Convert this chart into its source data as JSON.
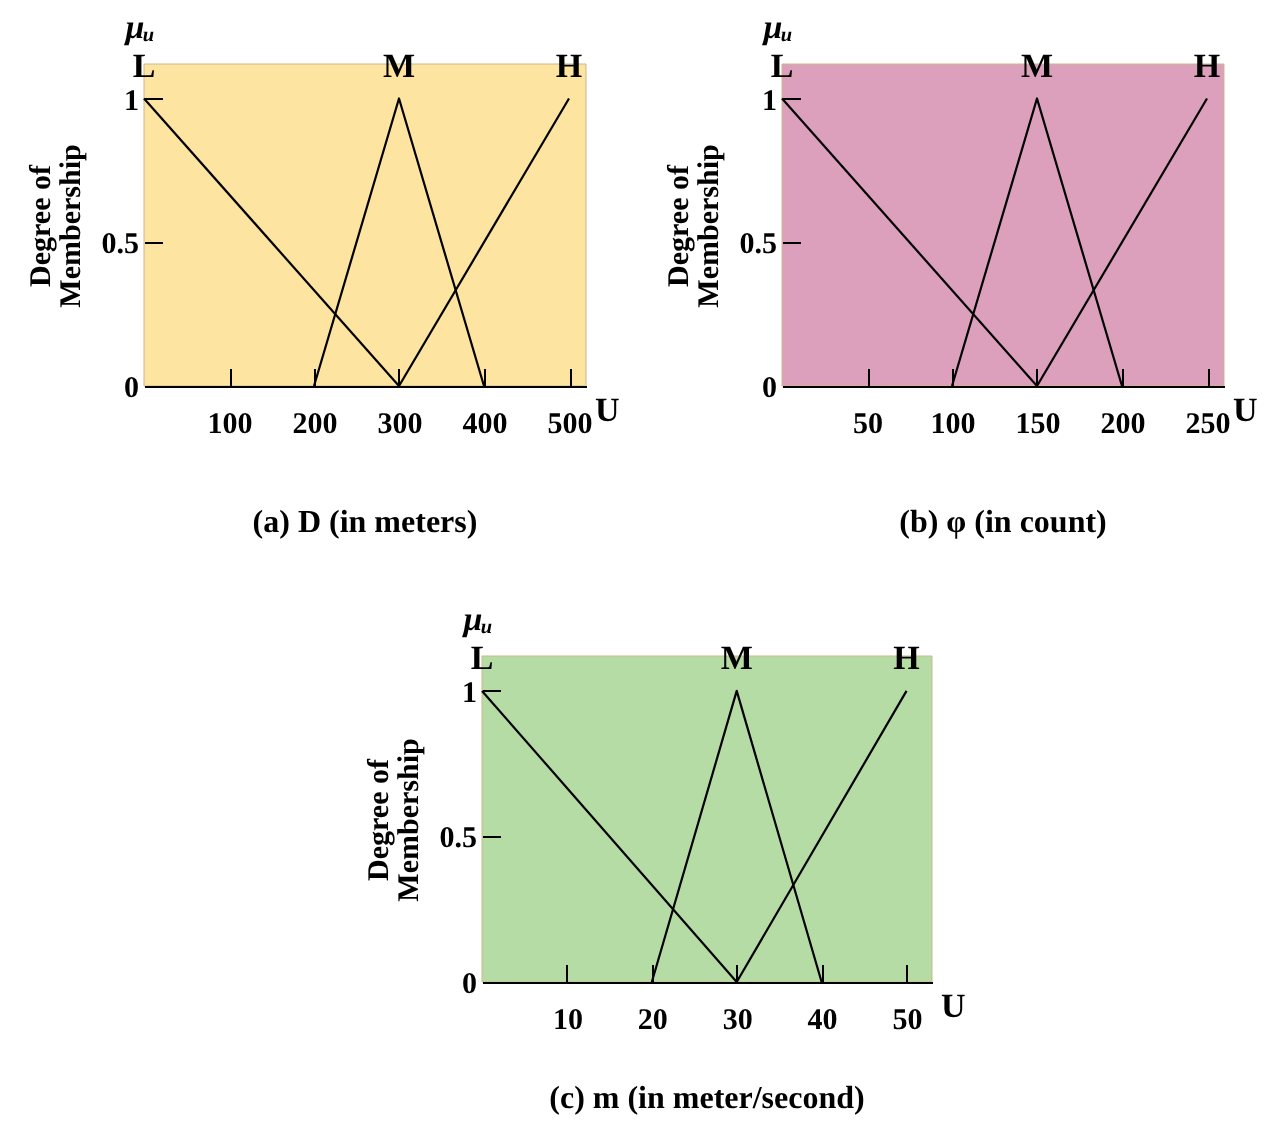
{
  "chart_data": [
    {
      "type": "line",
      "title": "(a) D (in meters)",
      "xlabel": "U",
      "ylabel": "Degree of Membership",
      "annotations": [
        "μᵤ"
      ],
      "xlim": [
        0,
        520
      ],
      "ylim": [
        0,
        1.12
      ],
      "xticks": [
        100,
        200,
        300,
        400,
        500
      ],
      "yticks": [
        0,
        0.5,
        1
      ],
      "grid": false,
      "legend": false,
      "series": [
        {
          "name": "L",
          "color": "#000000",
          "x": [
            0,
            300
          ],
          "values": [
            1,
            0
          ]
        },
        {
          "name": "M",
          "color": "#000000",
          "x": [
            200,
            300,
            400
          ],
          "values": [
            0,
            1,
            0
          ]
        },
        {
          "name": "H",
          "color": "#000000",
          "x": [
            300,
            500
          ],
          "values": [
            0,
            1
          ]
        }
      ]
    },
    {
      "type": "line",
      "title": "(b) φ (in count)",
      "xlabel": "U",
      "ylabel": "Degree of Membership",
      "annotations": [
        "μᵤ"
      ],
      "xlim": [
        0,
        260
      ],
      "ylim": [
        0,
        1.12
      ],
      "xticks": [
        50,
        100,
        150,
        200,
        250
      ],
      "yticks": [
        0,
        0.5,
        1
      ],
      "grid": false,
      "legend": false,
      "series": [
        {
          "name": "L",
          "color": "#000000",
          "x": [
            0,
            150
          ],
          "values": [
            1,
            0
          ]
        },
        {
          "name": "M",
          "color": "#000000",
          "x": [
            100,
            150,
            200
          ],
          "values": [
            0,
            1,
            0
          ]
        },
        {
          "name": "H",
          "color": "#000000",
          "x": [
            150,
            250
          ],
          "values": [
            0,
            1
          ]
        }
      ]
    },
    {
      "type": "line",
      "title": "(c) m (in meter/second)",
      "xlabel": "U",
      "ylabel": "Degree of Membership",
      "annotations": [
        "μᵤ"
      ],
      "xlim": [
        0,
        53
      ],
      "ylim": [
        0,
        1.12
      ],
      "xticks": [
        10,
        20,
        30,
        40,
        50
      ],
      "yticks": [
        0,
        0.5,
        1
      ],
      "grid": false,
      "legend": false,
      "series": [
        {
          "name": "L",
          "color": "#000000",
          "x": [
            0,
            30
          ],
          "values": [
            1,
            0
          ]
        },
        {
          "name": "M",
          "color": "#000000",
          "x": [
            20,
            30,
            40
          ],
          "values": [
            0,
            1,
            0
          ]
        },
        {
          "name": "H",
          "color": "#000000",
          "x": [
            30,
            50
          ],
          "values": [
            0,
            1
          ]
        }
      ]
    }
  ]
}
